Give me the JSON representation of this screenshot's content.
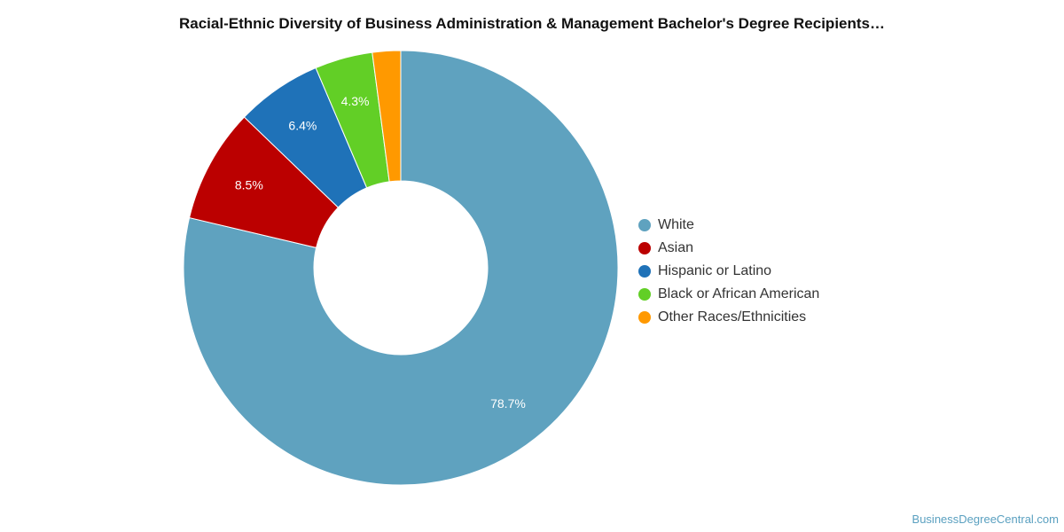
{
  "chart_data": {
    "type": "pie",
    "variant": "donut",
    "title": "Racial-Ethnic Diversity of Business Administration & Management Bachelor's Degree Recipients…",
    "categories": [
      "White",
      "Asian",
      "Hispanic or Latino",
      "Black or African American",
      "Other Races/Ethnicities"
    ],
    "values": [
      78.7,
      8.5,
      6.4,
      4.3,
      2.1
    ],
    "data_labels": [
      "78.7%",
      "8.5%",
      "6.4%",
      "4.3%",
      ""
    ],
    "colors": [
      "#5fa2bf",
      "#bb0000",
      "#1f72b8",
      "#62cf26",
      "#ff9900"
    ],
    "legend_position": "right"
  },
  "credit": "BusinessDegreeCentral.com"
}
